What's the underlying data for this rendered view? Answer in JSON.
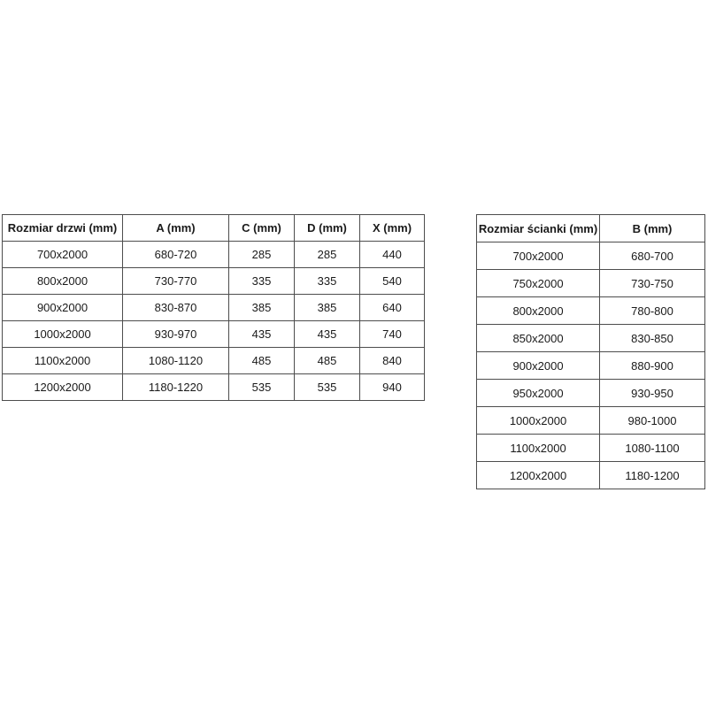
{
  "colors": {
    "background": "#ffffff",
    "table_border": "#4d4d4d",
    "text": "#1a1a1a"
  },
  "tables": [
    {
      "name": "door-size-table",
      "columns": [
        "Rozmiar drzwi (mm)",
        "A (mm)",
        "C (mm)",
        "D (mm)",
        "X (mm)"
      ],
      "rows": [
        [
          "700x2000",
          "680-720",
          "285",
          "285",
          "440"
        ],
        [
          "800x2000",
          "730-770",
          "335",
          "335",
          "540"
        ],
        [
          "900x2000",
          "830-870",
          "385",
          "385",
          "640"
        ],
        [
          "1000x2000",
          "930-970",
          "435",
          "435",
          "740"
        ],
        [
          "1100x2000",
          "1080-1120",
          "485",
          "485",
          "840"
        ],
        [
          "1200x2000",
          "1180-1220",
          "535",
          "535",
          "940"
        ]
      ]
    },
    {
      "name": "wall-size-table",
      "columns": [
        "Rozmiar ścianki (mm)",
        "B (mm)"
      ],
      "rows": [
        [
          "700x2000",
          "680-700"
        ],
        [
          "750x2000",
          "730-750"
        ],
        [
          "800x2000",
          "780-800"
        ],
        [
          "850x2000",
          "830-850"
        ],
        [
          "900x2000",
          "880-900"
        ],
        [
          "950x2000",
          "930-950"
        ],
        [
          "1000x2000",
          "980-1000"
        ],
        [
          "1100x2000",
          "1080-1100"
        ],
        [
          "1200x2000",
          "1180-1200"
        ]
      ]
    }
  ]
}
